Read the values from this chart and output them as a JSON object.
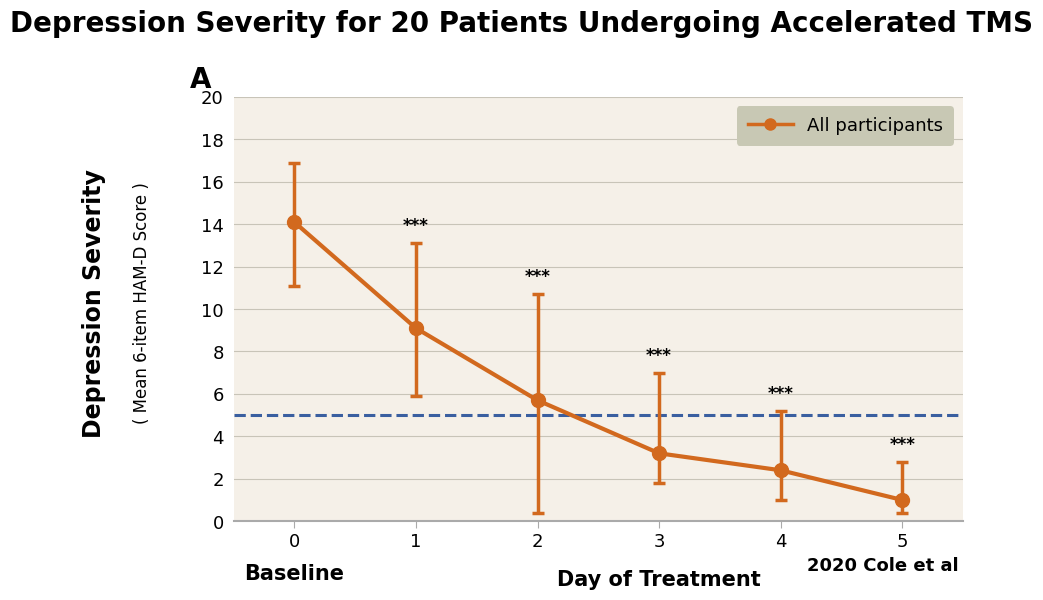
{
  "title": "Depression Severity for 20 Patients Undergoing Accelerated TMS",
  "subtitle_letter": "A",
  "xlabel": "Day of Treatment",
  "xlabel_baseline": "Baseline",
  "ylabel_line1": "Depression Severity",
  "ylabel_line2": "( Mean 6-item HAM-D Score )",
  "citation": "2020 Cole et al",
  "x": [
    0,
    1,
    2,
    3,
    4,
    5
  ],
  "y": [
    14.1,
    9.1,
    5.7,
    3.2,
    2.4,
    1.0
  ],
  "yerr_lower": [
    3.0,
    3.2,
    5.3,
    1.4,
    1.4,
    0.6
  ],
  "yerr_upper": [
    2.8,
    4.0,
    5.0,
    3.8,
    2.8,
    1.8
  ],
  "line_color": "#D2691E",
  "marker_color": "#D2691E",
  "dashed_line_y": 5.0,
  "dashed_line_color": "#3A5FA0",
  "legend_label": "All participants",
  "legend_bg_color": "#C8C8B4",
  "significance_labels": [
    "",
    "***",
    "***",
    "***",
    "***",
    "***"
  ],
  "ylim": [
    0,
    20
  ],
  "yticks": [
    0,
    2,
    4,
    6,
    8,
    10,
    12,
    14,
    16,
    18,
    20
  ],
  "xticks": [
    0,
    1,
    2,
    3,
    4,
    5
  ],
  "background_color": "#F5F0E8",
  "outer_background": "#FFFFFF",
  "title_fontsize": 20,
  "axis_label_fontsize": 15,
  "tick_fontsize": 13,
  "sig_fontsize": 12,
  "legend_fontsize": 13,
  "marker_size": 10,
  "line_width": 2.5,
  "error_capsize": 4
}
